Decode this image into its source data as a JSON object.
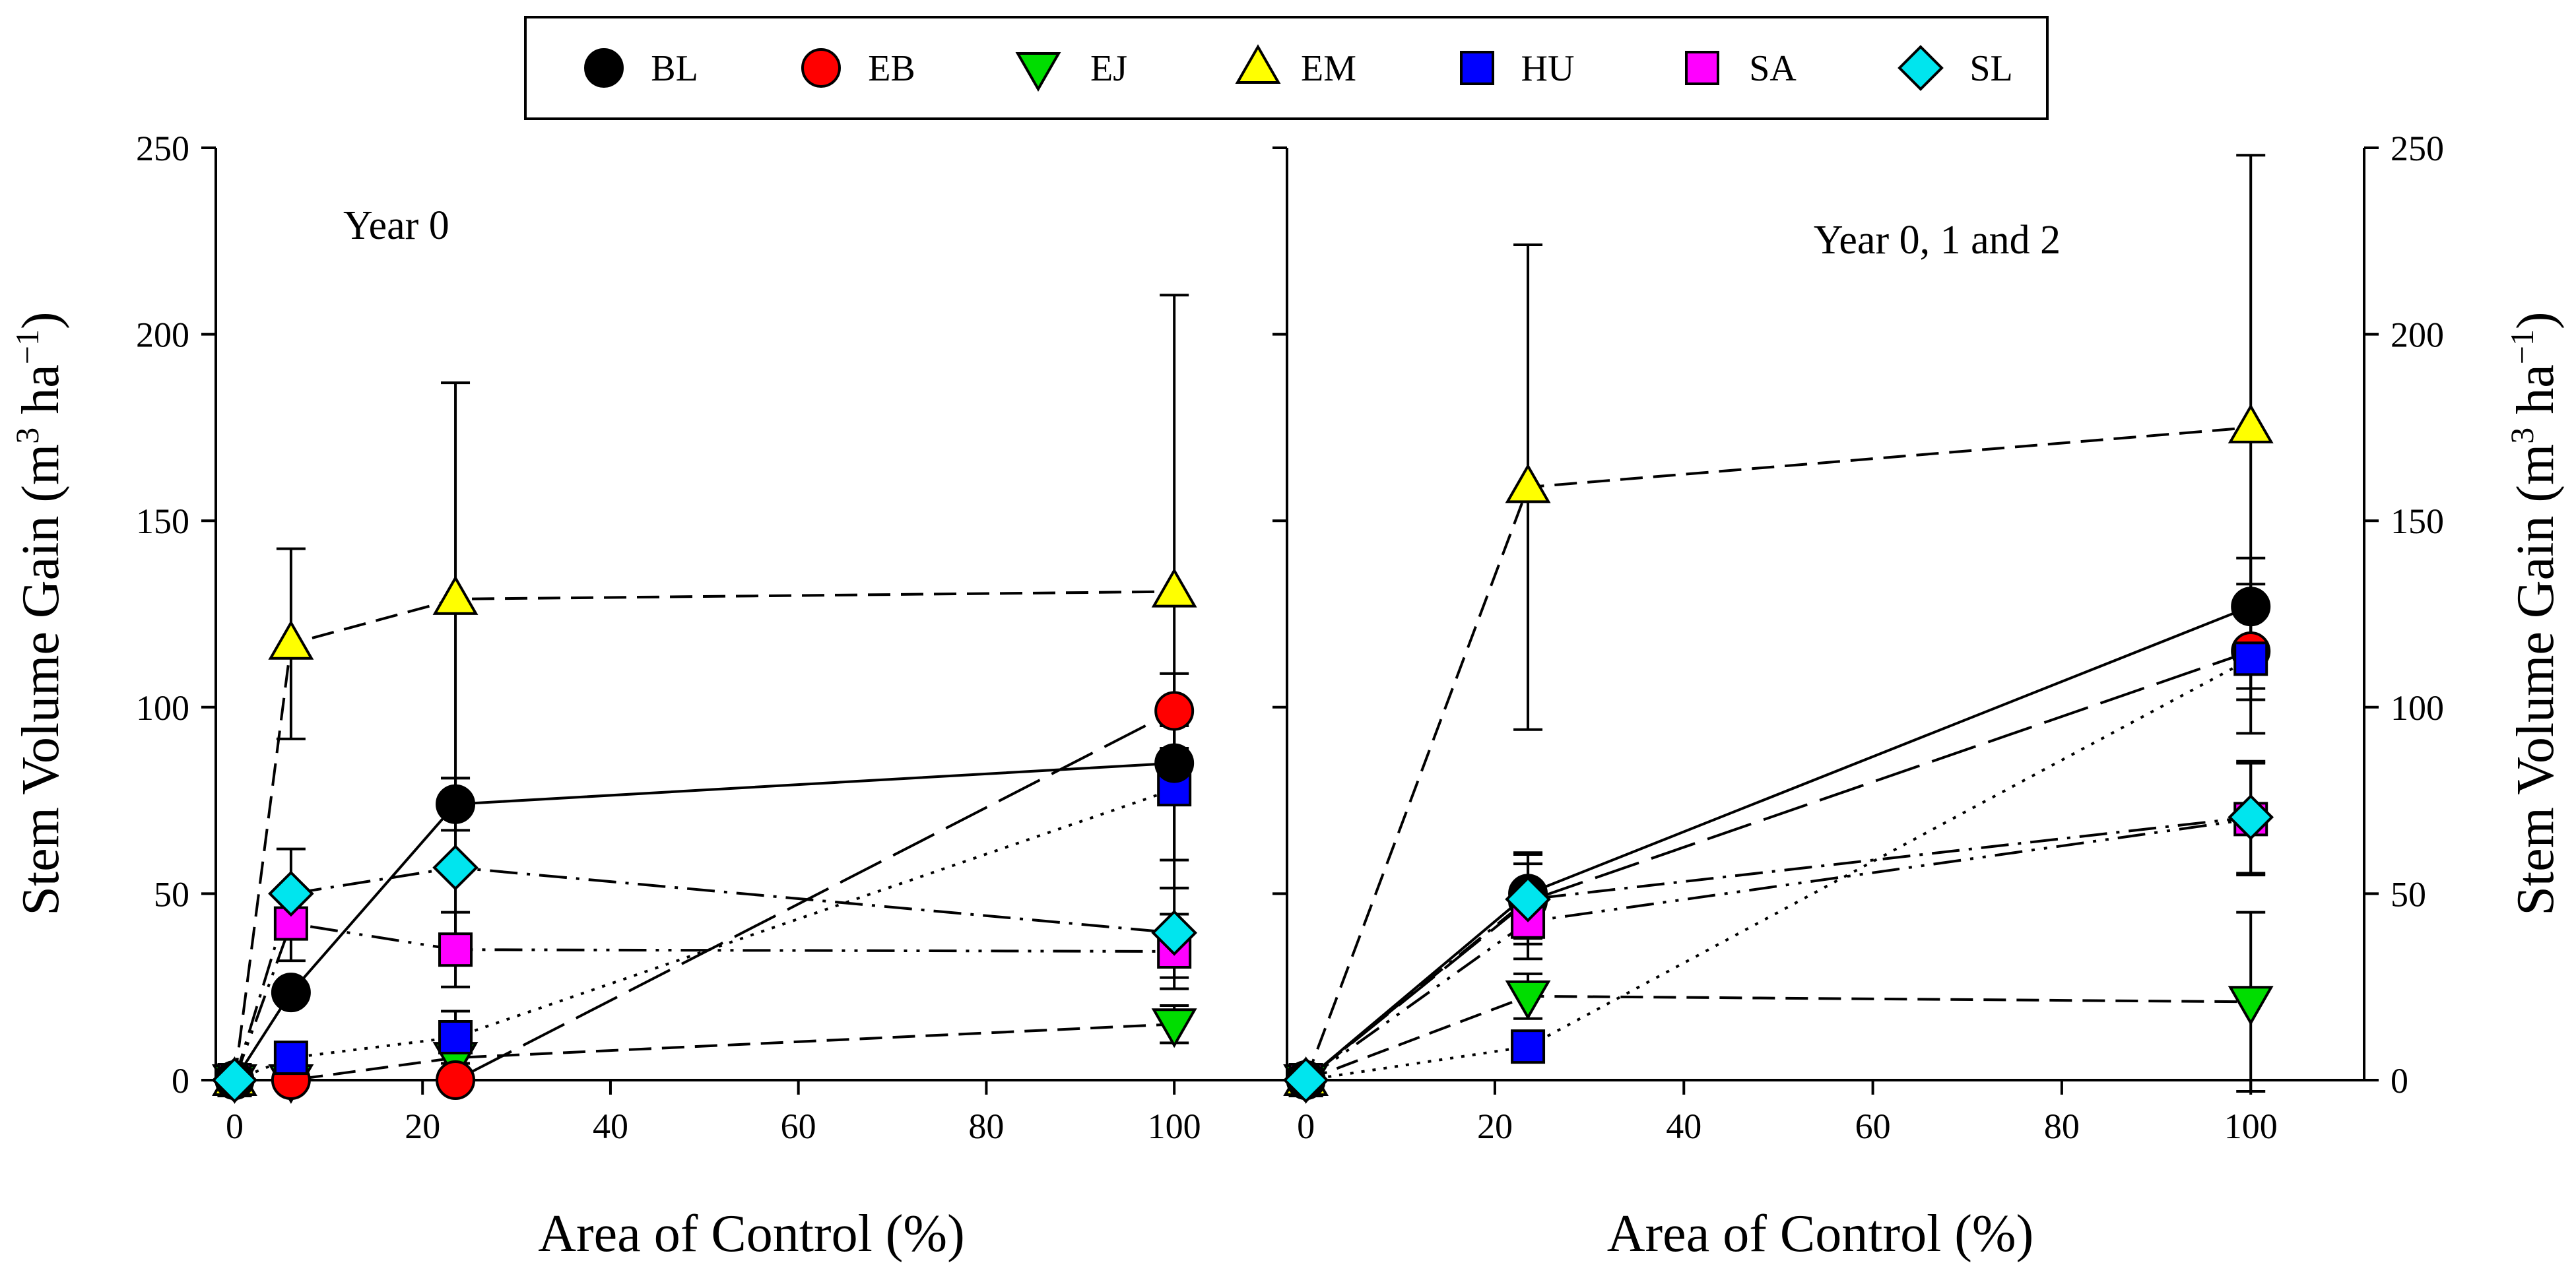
{
  "chart_data": {
    "type": "scatter",
    "title": "",
    "legend": {
      "placement": "top-center",
      "entries": [
        {
          "key": "BL",
          "label": "BL",
          "color": "#000000",
          "marker": "circle"
        },
        {
          "key": "EB",
          "label": "EB",
          "color": "#ff0000",
          "marker": "circle"
        },
        {
          "key": "EJ",
          "label": "EJ",
          "color": "#00dd00",
          "marker": "triangle-down"
        },
        {
          "key": "EM",
          "label": "EM",
          "color": "#ffff00",
          "marker": "triangle-up"
        },
        {
          "key": "HU",
          "label": "HU",
          "color": "#0000ff",
          "marker": "square"
        },
        {
          "key": "SA",
          "label": "SA",
          "color": "#ff00ff",
          "marker": "square"
        },
        {
          "key": "SL",
          "label": "SL",
          "color": "#00e5ee",
          "marker": "diamond"
        }
      ]
    },
    "xlabel": "Area of Control (%)",
    "ylabel": "Stem Volume Gain (m",
    "ylabel_sup1": "3",
    "ylabel_mid": " ha",
    "ylabel_sup2": "−1",
    "ylabel_end": ")",
    "ylim": [
      0,
      250
    ],
    "yticks": [
      "0",
      "50",
      "100",
      "150",
      "200",
      "250"
    ],
    "panels": [
      {
        "label": "Year 0",
        "xlim": [
          -2,
          112
        ],
        "xticks": [
          "0",
          "20",
          "40",
          "60",
          "80",
          "100"
        ],
        "series": [
          {
            "key": "BL",
            "x": [
              0,
              6,
              23.5,
              100
            ],
            "y": [
              0,
              23.5,
              74,
              85
            ],
            "err": [
              0,
              0,
              7,
              10
            ],
            "line": "solid"
          },
          {
            "key": "EB",
            "x": [
              0,
              6,
              23.5,
              100
            ],
            "y": [
              0,
              0,
              0,
              99
            ],
            "err": [
              0,
              0,
              0,
              10
            ],
            "line": "longdash"
          },
          {
            "key": "EJ",
            "x": [
              0,
              6,
              23.5,
              100
            ],
            "y": [
              0,
              0,
              6,
              15
            ],
            "err": [
              0,
              0,
              3,
              5
            ],
            "line": "dash"
          },
          {
            "key": "EM",
            "x": [
              0,
              6,
              23.5,
              100
            ],
            "y": [
              0,
              117,
              129,
              131
            ],
            "err": [
              0,
              25.5,
              58,
              79.5
            ],
            "line": "dash"
          },
          {
            "key": "HU",
            "x": [
              0,
              6,
              23.5,
              100
            ],
            "y": [
              0,
              6,
              11.5,
              78
            ],
            "err": [
              0,
              3,
              7,
              19
            ],
            "line": "dot"
          },
          {
            "key": "SA",
            "x": [
              0,
              6,
              23.5,
              100
            ],
            "y": [
              0,
              42,
              35,
              34.5
            ],
            "err": [
              0,
              10,
              10,
              10
            ],
            "line": "dashdotdot"
          },
          {
            "key": "SL",
            "x": [
              0,
              6,
              23.5,
              100
            ],
            "y": [
              0,
              50,
              57,
              39.5
            ],
            "err": [
              0,
              12,
              24,
              12
            ],
            "line": "dashdot"
          }
        ]
      },
      {
        "label": "Year 0, 1 and 2",
        "xlim": [
          -2,
          112
        ],
        "xticks": [
          "0",
          "20",
          "40",
          "60",
          "80",
          "100"
        ],
        "series": [
          {
            "key": "BL",
            "x": [
              0,
              23.5,
              100
            ],
            "y": [
              0,
              50,
              127
            ],
            "err": [
              0,
              11,
              13
            ],
            "line": "solid"
          },
          {
            "key": "EB",
            "x": [
              0,
              23.5,
              100
            ],
            "y": [
              0,
              48,
              115
            ],
            "err": [
              0,
              10,
              10
            ],
            "line": "longdash"
          },
          {
            "key": "EJ",
            "x": [
              0,
              23.5,
              100
            ],
            "y": [
              0,
              22.5,
              21
            ],
            "err": [
              0,
              6,
              24
            ],
            "line": "dash"
          },
          {
            "key": "EM",
            "x": [
              0,
              23.5,
              100
            ],
            "y": [
              0,
              159,
              175
            ],
            "err": [
              0,
              65,
              73
            ],
            "line": "dash"
          },
          {
            "key": "HU",
            "x": [
              0,
              23.5,
              100
            ],
            "y": [
              0,
              9,
              113
            ],
            "err": [
              0,
              4,
              20
            ],
            "line": "dot"
          },
          {
            "key": "SA",
            "x": [
              0,
              23.5,
              100
            ],
            "y": [
              0,
              42.5,
              70
            ],
            "err": [
              0,
              10,
              15
            ],
            "line": "dashdotdot"
          },
          {
            "key": "SL",
            "x": [
              0,
              23.5,
              100
            ],
            "y": [
              0,
              48.5,
              70.5
            ],
            "err": [
              0,
              12,
              15
            ],
            "line": "dashdot"
          }
        ]
      }
    ]
  }
}
